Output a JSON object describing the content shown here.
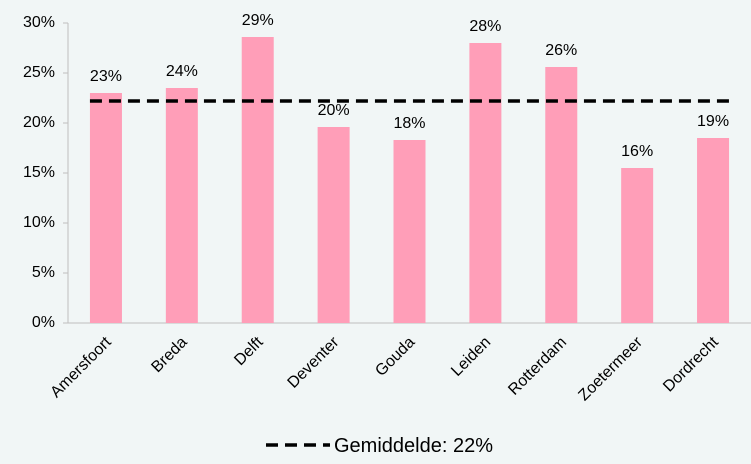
{
  "chart_data": {
    "type": "bar",
    "categories": [
      "Amersfoort",
      "Breda",
      "Delft",
      "Deventer",
      "Gouda",
      "Leiden",
      "Rotterdam",
      "Zoetermeer",
      "Dordrecht"
    ],
    "values": [
      23.0,
      23.5,
      28.6,
      19.6,
      18.3,
      28.0,
      25.6,
      15.5,
      18.5
    ],
    "value_labels": [
      "23%",
      "24%",
      "29%",
      "20%",
      "18%",
      "28%",
      "26%",
      "16%",
      "19%"
    ],
    "color": "#ff9eb8",
    "ylim": [
      0,
      30
    ],
    "yticks": [
      {
        "value": 0,
        "label": "0%"
      },
      {
        "value": 5,
        "label": "5%"
      },
      {
        "value": 10,
        "label": "10%"
      },
      {
        "value": 15,
        "label": "15%"
      },
      {
        "value": 20,
        "label": "20%"
      },
      {
        "value": 25,
        "label": "25%"
      },
      {
        "value": 30,
        "label": "30%"
      }
    ],
    "average": 22.2,
    "average_label": "Gemiddelde: 22%",
    "average_color": "#000000",
    "grid": false
  }
}
